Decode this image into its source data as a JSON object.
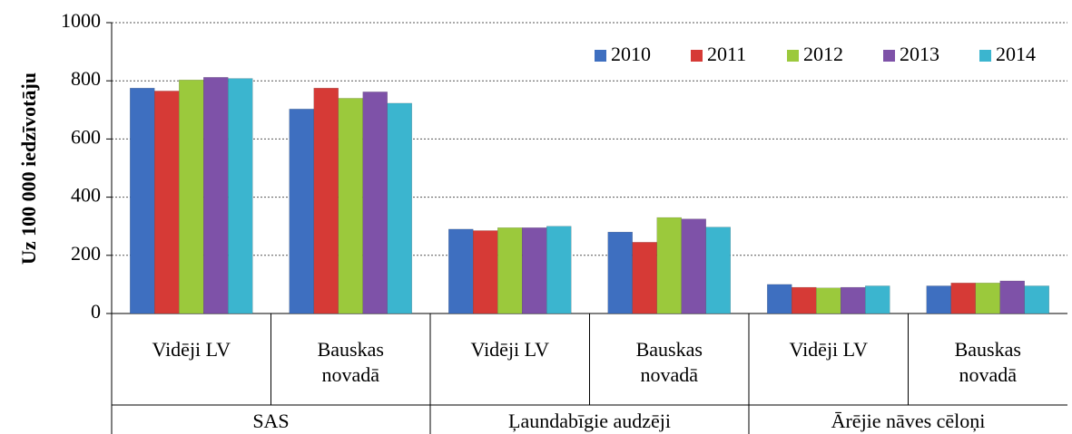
{
  "chart_data": {
    "type": "bar",
    "y_label": "Uz 100 000 iedzīvotāju",
    "groups": [
      "SAS",
      "Ļaundabīgie audzēji",
      "Ārējie nāves cēloņi"
    ],
    "categories": [
      "Vidēji LV",
      "Bauskas novadā",
      "Vidēji LV",
      "Bauskas novadā",
      "Vidēji LV",
      "Bauskas novadā"
    ],
    "series": [
      {
        "name": "2010",
        "color": "#3e6fc0",
        "values": [
          775,
          703,
          290,
          280,
          100,
          95
        ]
      },
      {
        "name": "2011",
        "color": "#d63a36",
        "values": [
          765,
          775,
          285,
          245,
          90,
          105
        ]
      },
      {
        "name": "2012",
        "color": "#9bc93c",
        "values": [
          803,
          740,
          295,
          330,
          88,
          105
        ]
      },
      {
        "name": "2013",
        "color": "#7e52a8",
        "values": [
          812,
          762,
          295,
          325,
          90,
          112
        ]
      },
      {
        "name": "2014",
        "color": "#3bb5cf",
        "values": [
          808,
          723,
          300,
          297,
          95,
          95
        ]
      }
    ],
    "ylim": [
      0,
      1000
    ],
    "yticks": [
      0,
      200,
      400,
      600,
      800,
      1000
    ],
    "grid": true,
    "legend": "top-right"
  }
}
